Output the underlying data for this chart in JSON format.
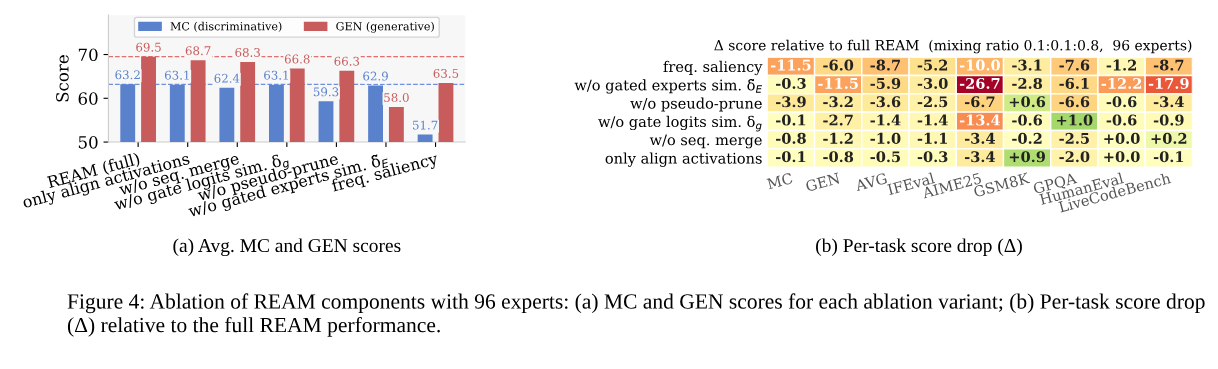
{
  "chart_data": [
    {
      "type": "bar",
      "categories": [
        "REAM (full)",
        "only align activations",
        "w/o seq. merge",
        "w/o gate logits sim. δ$_{g}$",
        "w/o pseudo-prune",
        "w/o gated experts sim. δ̃$_{E}$",
        "freq. saliency"
      ],
      "series": [
        {
          "name": "MC (discriminative)",
          "color": "#5a82cc",
          "values": [
            63.2,
            63.1,
            62.4,
            63.1,
            59.3,
            62.9,
            51.7
          ]
        },
        {
          "name": "GEN (generative)",
          "color": "#c85c5c",
          "values": [
            69.5,
            68.7,
            68.3,
            66.8,
            66.3,
            58.0,
            63.5
          ],
          "value_labels": [
            "69.5",
            "68.7",
            "68.3",
            "66.8",
            "66.3",
            "58.0",
            "63.5"
          ]
        }
      ],
      "ylabel": "Score",
      "ylim": [
        50,
        79
      ],
      "yticks": [
        50,
        60,
        70
      ],
      "data_labels": true,
      "legend": "top",
      "grid": false,
      "ref_lines": [
        {
          "axis": "y",
          "value": 69.5,
          "color": "#e07070",
          "line_style": "dashed"
        },
        {
          "axis": "y",
          "value": 63.2,
          "color": "#7090dd",
          "line_style": "dashed"
        }
      ],
      "annotations": [
        "(a) Avg. MC and GEN scores"
      ]
    },
    {
      "type": "heatmap",
      "title": "Δ score relative to full REAM  (mixing ratio 0.1:0.1:0.8,  96 experts)",
      "categories": [
        "MC",
        "GEN",
        "AVG",
        "IFEval",
        "AIME25",
        "GSM8K",
        "GPQA",
        "HumanEval",
        "LiveCodeBench"
      ],
      "y_categories": [
        "freq. saliency",
        "w/o gated experts sim. δ̃$_{E}$",
        "w/o pseudo-prune",
        "w/o gate logits sim. δ$_{g}$",
        "w/o seq. merge",
        "only align activations"
      ],
      "cells": [
        [
          -11.5,
          -6.0,
          -8.7,
          -5.2,
          -10.0,
          -3.1,
          -7.6,
          -1.2,
          -8.7
        ],
        [
          -0.3,
          -11.5,
          -5.9,
          -3.0,
          -26.7,
          -2.8,
          -6.1,
          -12.2,
          -17.9
        ],
        [
          -3.9,
          -3.2,
          -3.6,
          -2.5,
          -6.7,
          0.6,
          -6.6,
          -0.6,
          -3.4
        ],
        [
          -0.1,
          -2.7,
          -1.4,
          -1.4,
          -13.4,
          -0.6,
          1.0,
          -0.6,
          -0.9
        ],
        [
          -0.8,
          -1.2,
          -1.0,
          -1.1,
          -3.4,
          -0.2,
          -2.5,
          0.0,
          0.2
        ],
        [
          -0.1,
          -0.8,
          -0.5,
          -0.3,
          -3.4,
          0.9,
          -2.0,
          0.0,
          -0.1
        ]
      ],
      "cell_labels": [
        [
          "-11.5",
          "-6.0",
          "-8.7",
          "-5.2",
          "-10.0",
          "-3.1",
          "-7.6",
          "-1.2",
          "-8.7"
        ],
        [
          "-0.3",
          "-11.5",
          "-5.9",
          "-3.0",
          "-26.7",
          "-2.8",
          "-6.1",
          "-12.2",
          "-17.9"
        ],
        [
          "-3.9",
          "-3.2",
          "-3.6",
          "-2.5",
          "-6.7",
          "+0.6",
          "-6.6",
          "-0.6",
          "-3.4"
        ],
        [
          "-0.1",
          "-2.7",
          "-1.4",
          "-1.4",
          "-13.4",
          "-0.6",
          "+1.0",
          "-0.6",
          "-0.9"
        ],
        [
          "-0.8",
          "-1.2",
          "-1.0",
          "-1.1",
          "-3.4",
          "-0.2",
          "-2.5",
          "+0.0",
          "+0.2"
        ],
        [
          "-0.1",
          "-0.8",
          "-0.5",
          "-0.3",
          "-3.4",
          "+0.9",
          "-2.0",
          "+0.0",
          "-0.1"
        ]
      ],
      "annotations": [
        "(b) Per-task score drop (Δ)",
        "Figure 4: Ablation of REAM components with 96 experts: (a) MC and GEN scores for each ablation variant; (b) Per-task score drop (Δ) relative to the full REAM performance."
      ]
    }
  ]
}
